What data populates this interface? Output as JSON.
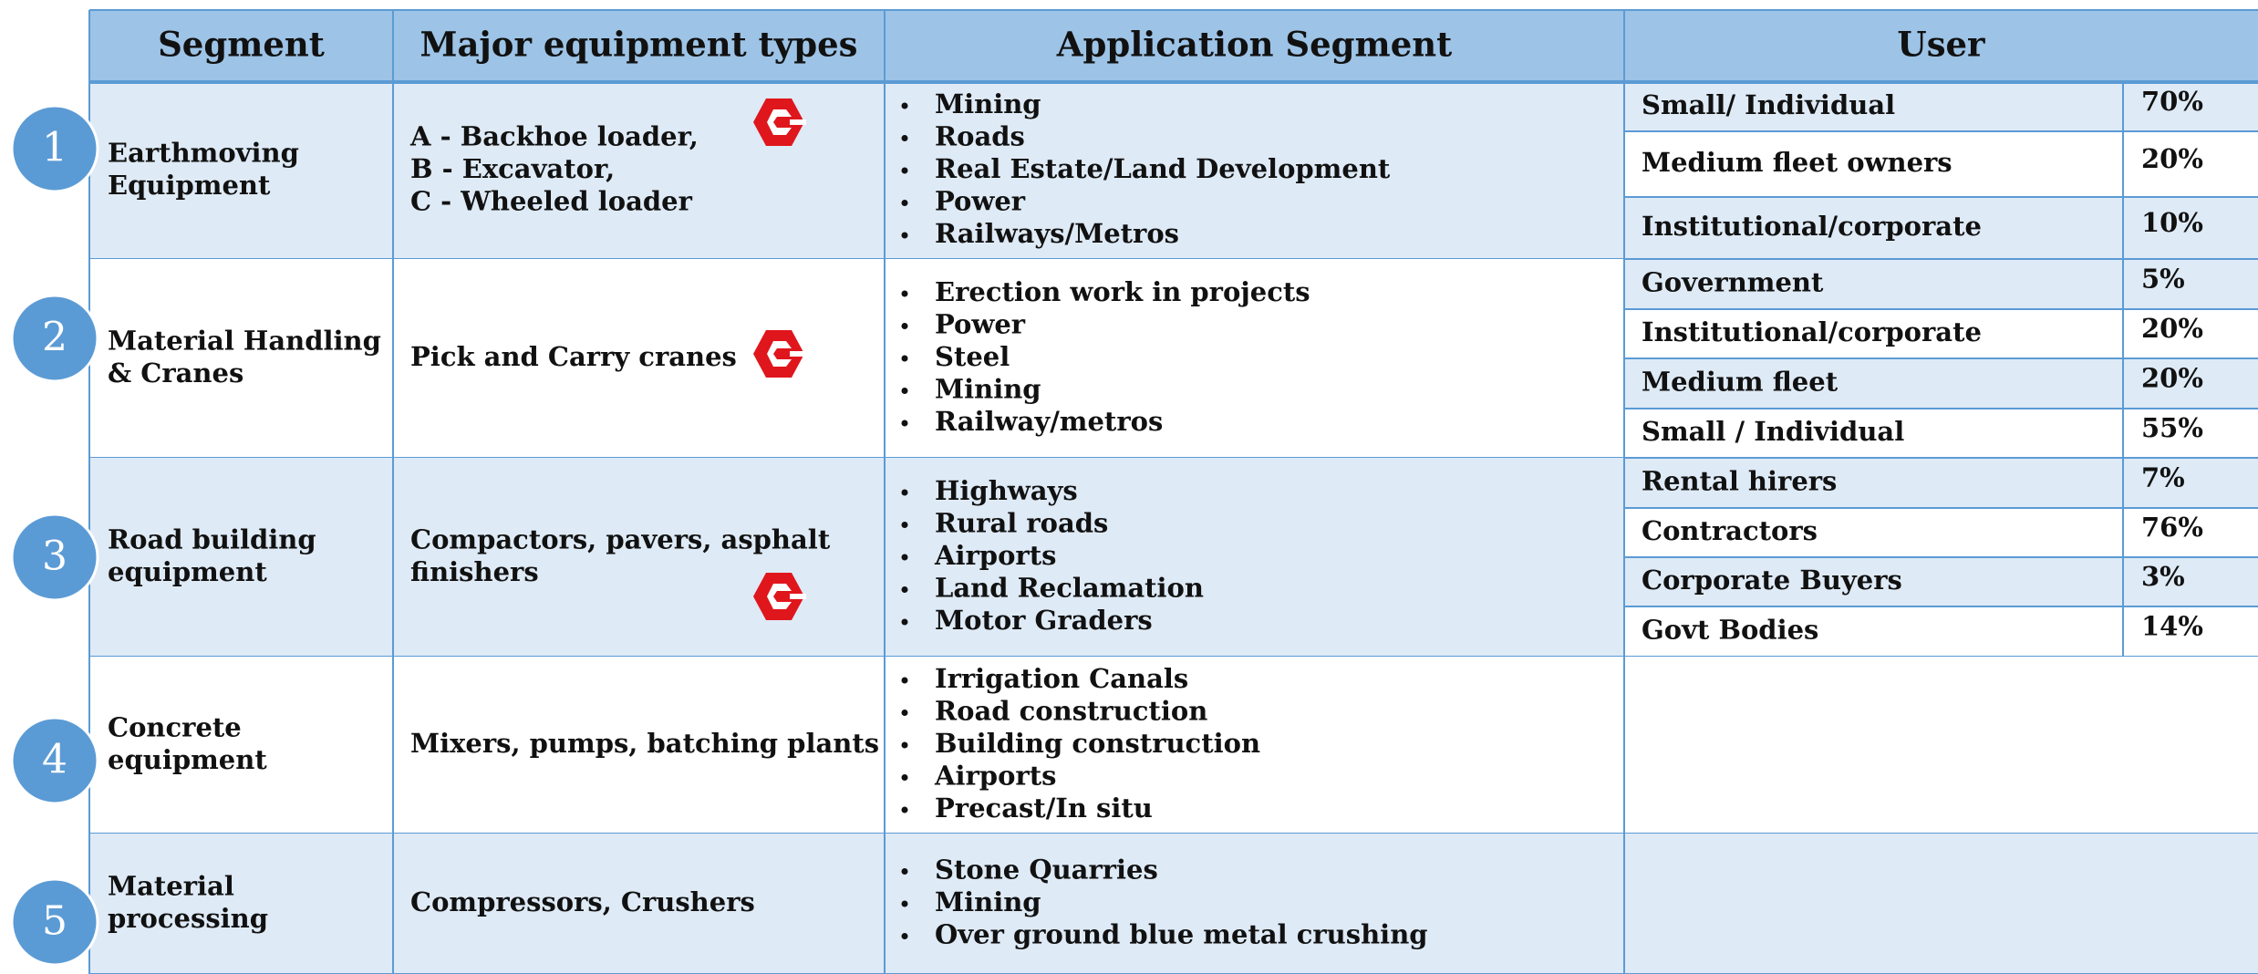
{
  "header": {
    "columns": [
      "Segment",
      "Major equipment types",
      "Application Segment",
      "User"
    ]
  },
  "rows": [
    {
      "number": "1",
      "segment": [
        "Earthmoving",
        "Equipment"
      ],
      "equipment": [
        "A - Backhoe loader,",
        "B - Excavator,",
        "C - Wheeled loader"
      ],
      "applications": [
        "Mining",
        "Roads",
        "Real Estate/Land Development",
        "Power",
        "Railways/Metros"
      ],
      "users": [
        {
          "name": "Small/ Individual",
          "share": "70%"
        },
        {
          "name": "Medium fleet owners",
          "share": "20%"
        },
        {
          "name": "Institutional/corporate",
          "share": "10%"
        }
      ]
    },
    {
      "number": "2",
      "segment": [
        "Material Handling",
        "& Cranes"
      ],
      "equipment": [
        "Pick and Carry cranes"
      ],
      "applications": [
        "Erection work in projects",
        "Power",
        "Steel",
        "Mining",
        "Railway/metros"
      ],
      "users": [
        {
          "name": "Government",
          "share": "5%"
        },
        {
          "name": "Institutional/corporate",
          "share": "20%"
        },
        {
          "name": "Medium fleet",
          "share": "20%"
        },
        {
          "name": "Small / Individual",
          "share": "55%"
        }
      ]
    },
    {
      "number": "3",
      "segment": [
        "Road building",
        "equipment"
      ],
      "equipment": [
        "Compactors, pavers, asphalt",
        "finishers"
      ],
      "applications": [
        "Highways",
        "Rural roads",
        "Airports",
        "Land Reclamation",
        "Motor Graders"
      ],
      "users": [
        {
          "name": "Rental hirers",
          "share": "7%"
        },
        {
          "name": "Contractors",
          "share": "76%"
        },
        {
          "name": "Corporate Buyers",
          "share": "3%"
        },
        {
          "name": "Govt Bodies",
          "share": "14%"
        }
      ]
    },
    {
      "number": "4",
      "segment": [
        "Concrete",
        "equipment"
      ],
      "equipment": [
        "Mixers, pumps, batching plants"
      ],
      "applications": [
        "Irrigation Canals",
        "Road construction",
        "Building construction",
        "Airports",
        "Precast/In situ"
      ],
      "users": []
    },
    {
      "number": "5",
      "segment": [
        "Material",
        "processing"
      ],
      "equipment": [
        "Compressors, Crushers"
      ],
      "applications": [
        "Stone Quarries",
        "Mining",
        "Over ground blue metal crushing"
      ],
      "users": []
    }
  ]
}
